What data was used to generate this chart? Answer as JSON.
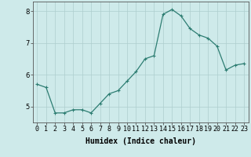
{
  "x": [
    0,
    1,
    2,
    3,
    4,
    5,
    6,
    7,
    8,
    9,
    10,
    11,
    12,
    13,
    14,
    15,
    16,
    17,
    18,
    19,
    20,
    21,
    22,
    23
  ],
  "y": [
    5.7,
    5.6,
    4.8,
    4.8,
    4.9,
    4.9,
    4.8,
    5.1,
    5.4,
    5.5,
    5.8,
    6.1,
    6.5,
    6.6,
    7.9,
    8.05,
    7.85,
    7.45,
    7.25,
    7.15,
    6.9,
    6.15,
    6.3,
    6.35
  ],
  "line_color": "#2d7d72",
  "marker": "+",
  "marker_size": 3,
  "marker_linewidth": 0.8,
  "line_width": 0.9,
  "background_color": "#ceeaea",
  "grid_color": "#aecece",
  "xlabel": "Humidex (Indice chaleur)",
  "xlabel_fontsize": 7,
  "tick_fontsize": 6,
  "ylim": [
    4.5,
    8.3
  ],
  "xlim": [
    -0.5,
    23.5
  ],
  "yticks": [
    5,
    6,
    7,
    8
  ],
  "xticks": [
    0,
    1,
    2,
    3,
    4,
    5,
    6,
    7,
    8,
    9,
    10,
    11,
    12,
    13,
    14,
    15,
    16,
    17,
    18,
    19,
    20,
    21,
    22,
    23
  ],
  "spine_color": "#555555",
  "tick_color": "#555555"
}
